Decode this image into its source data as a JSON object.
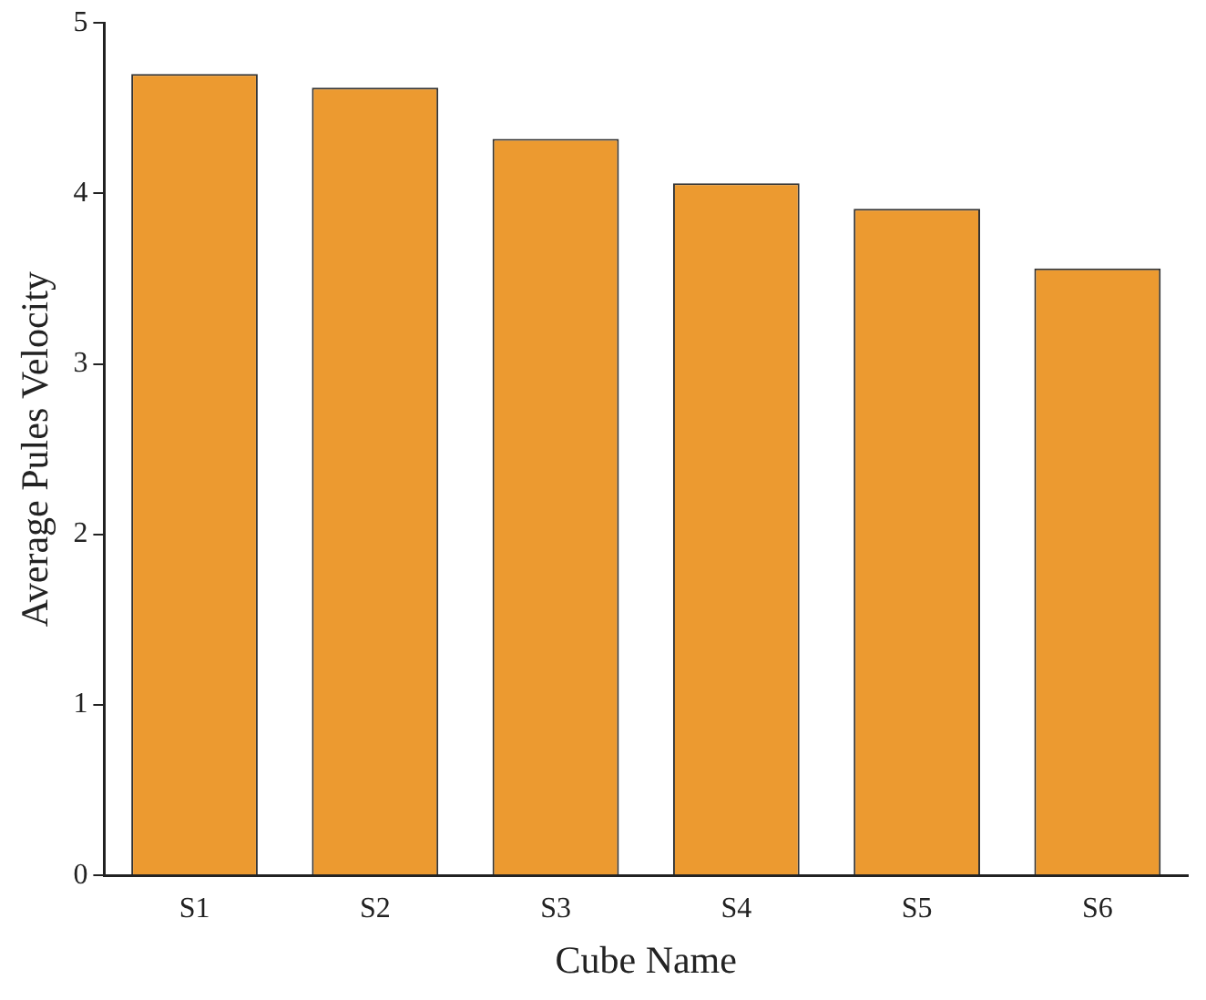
{
  "chart_data": {
    "type": "bar",
    "xlabel": "Cube Name",
    "ylabel": "Average Pules Velocity",
    "categories": [
      "S1",
      "S2",
      "S3",
      "S4",
      "S5",
      "S6"
    ],
    "values": [
      4.7,
      4.62,
      4.32,
      4.06,
      3.91,
      3.56
    ],
    "color": "#ec9a30",
    "ylim": [
      0,
      5
    ],
    "yticks": [
      0,
      1,
      2,
      3,
      4,
      5
    ],
    "grid": false
  }
}
